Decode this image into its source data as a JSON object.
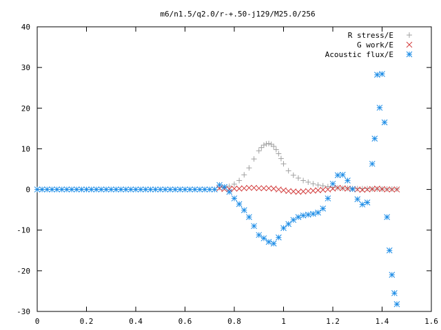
{
  "chart_data": {
    "type": "scatter",
    "title": "m6/n1.5/q2.0/r-+.50-j129/M25.0/256",
    "xlabel": "",
    "ylabel": "",
    "xlim": [
      0,
      1.6
    ],
    "ylim": [
      -30,
      40
    ],
    "x_ticks": [
      "0",
      "0.2",
      "0.4",
      "0.6",
      "0.8",
      "1",
      "1.2",
      "1.4",
      "1.6"
    ],
    "y_ticks": [
      "40",
      "30",
      "20",
      "10",
      "0",
      "-10",
      "-20",
      "-30"
    ],
    "legend_position": "top-right",
    "grid": false,
    "series": [
      {
        "name": "R stress/E",
        "marker": "plus",
        "color": "#a0a0a0",
        "x": [
          0.74,
          0.76,
          0.78,
          0.8,
          0.82,
          0.84,
          0.86,
          0.88,
          0.9,
          0.91,
          0.92,
          0.93,
          0.94,
          0.95,
          0.96,
          0.97,
          0.98,
          0.99,
          1.0,
          1.02,
          1.04,
          1.06,
          1.08,
          1.1,
          1.12,
          1.14,
          1.16,
          1.18,
          1.2,
          1.22,
          1.24,
          1.26,
          1.28,
          1.3,
          1.32,
          1.34,
          1.36,
          1.38,
          1.4,
          1.42,
          1.44,
          1.46
        ],
        "y": [
          0.5,
          0.5,
          0.8,
          1.3,
          2.2,
          3.6,
          5.3,
          7.5,
          9.5,
          10.3,
          10.9,
          11.2,
          11.3,
          11.1,
          10.6,
          9.8,
          8.8,
          7.6,
          6.3,
          4.6,
          3.5,
          2.8,
          2.2,
          1.8,
          1.4,
          1.1,
          0.9,
          0.7,
          0.5,
          0.4,
          0.3,
          0.3,
          0.2,
          0.2,
          0.2,
          0.2,
          0.1,
          0.1,
          0.1,
          0.1,
          0.1,
          0.1
        ]
      },
      {
        "name": "G work/E",
        "marker": "cross",
        "color": "#d23c3c",
        "x": [
          0.74,
          0.76,
          0.78,
          0.8,
          0.82,
          0.84,
          0.86,
          0.88,
          0.9,
          0.92,
          0.94,
          0.96,
          0.98,
          1.0,
          1.02,
          1.04,
          1.06,
          1.08,
          1.1,
          1.12,
          1.14,
          1.16,
          1.18,
          1.2,
          1.22,
          1.24,
          1.26,
          1.28,
          1.3,
          1.32,
          1.34,
          1.36,
          1.38,
          1.4,
          1.42,
          1.44,
          1.46
        ],
        "y": [
          0.3,
          0.1,
          0.1,
          0.2,
          0.2,
          0.3,
          0.4,
          0.4,
          0.3,
          0.3,
          0.3,
          0.2,
          0.0,
          -0.2,
          -0.4,
          -0.5,
          -0.6,
          -0.5,
          -0.4,
          -0.3,
          -0.2,
          -0.1,
          0.0,
          0.2,
          0.4,
          0.3,
          0.2,
          0.1,
          0.0,
          -0.1,
          0.0,
          0.1,
          0.2,
          0.1,
          0.0,
          0.0,
          0.0
        ]
      },
      {
        "name": "Acoustic flux/E",
        "marker": "star",
        "color": "#1c8ce6",
        "x": [
          0.0,
          0.02,
          0.04,
          0.06,
          0.08,
          0.1,
          0.12,
          0.14,
          0.16,
          0.18,
          0.2,
          0.22,
          0.24,
          0.26,
          0.28,
          0.3,
          0.32,
          0.34,
          0.36,
          0.38,
          0.4,
          0.42,
          0.44,
          0.46,
          0.48,
          0.5,
          0.52,
          0.54,
          0.56,
          0.58,
          0.6,
          0.62,
          0.64,
          0.66,
          0.68,
          0.7,
          0.72,
          0.74,
          0.76,
          0.78,
          0.8,
          0.82,
          0.84,
          0.86,
          0.88,
          0.9,
          0.92,
          0.94,
          0.96,
          0.98,
          1.0,
          1.02,
          1.04,
          1.06,
          1.08,
          1.1,
          1.12,
          1.14,
          1.16,
          1.18,
          1.2,
          1.22,
          1.24,
          1.26,
          1.28,
          1.3,
          1.32,
          1.34,
          1.36,
          1.37,
          1.38,
          1.39,
          1.4,
          1.41,
          1.42,
          1.43,
          1.44,
          1.45,
          1.46
        ],
        "y": [
          0,
          0,
          0,
          0,
          0,
          0,
          0,
          0,
          0,
          0,
          0,
          0,
          0,
          0,
          0,
          0,
          0,
          0,
          0,
          0,
          0,
          0,
          0,
          0,
          0,
          0,
          0,
          0,
          0,
          0,
          0,
          0,
          0,
          0,
          0,
          0,
          0,
          1.1,
          0.6,
          -0.6,
          -2.2,
          -3.6,
          -5.1,
          -6.8,
          -9.0,
          -11.2,
          -12.0,
          -12.9,
          -13.3,
          -11.8,
          -9.5,
          -8.5,
          -7.5,
          -6.8,
          -6.4,
          -6.2,
          -6.0,
          -5.7,
          -4.7,
          -2.2,
          1.4,
          3.5,
          3.6,
          2.2,
          0.1,
          -2.4,
          -3.7,
          -3.2,
          6.3,
          12.5,
          28.2,
          20.1,
          28.4,
          16.5,
          -6.8,
          -15.0,
          -21.0,
          -25.5,
          -28.2
        ]
      }
    ]
  }
}
